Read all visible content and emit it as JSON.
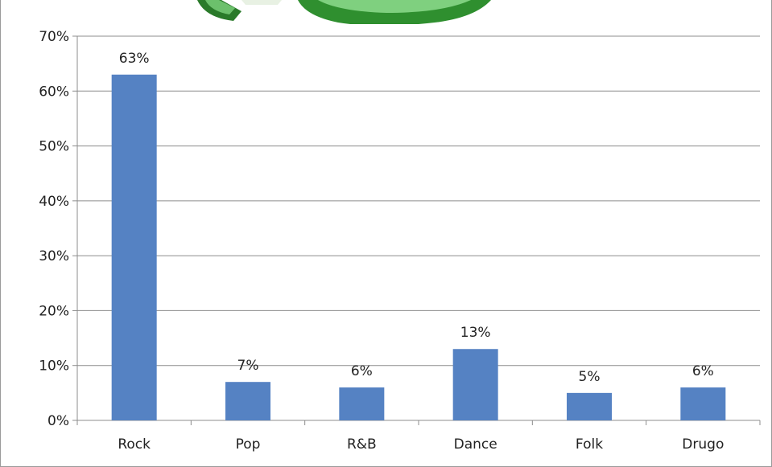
{
  "chart_data": {
    "type": "bar",
    "categories": [
      "Rock",
      "Pop",
      "R&B",
      "Dance",
      "Folk",
      "Drugo"
    ],
    "values": [
      63,
      7,
      6,
      13,
      5,
      6
    ],
    "data_labels": [
      "63%",
      "7%",
      "6%",
      "13%",
      "5%",
      "6%"
    ],
    "ylim": [
      0,
      70
    ],
    "yticks": [
      0,
      10,
      20,
      30,
      40,
      50,
      60,
      70
    ],
    "ytick_labels": [
      "0%",
      "10%",
      "20%",
      "30%",
      "40%",
      "50%",
      "60%",
      "70%"
    ],
    "grid": true,
    "legend": "none",
    "bar_color": "#5582c3",
    "title": "",
    "xlabel": "",
    "ylabel": ""
  },
  "decoration": {
    "icon": "green-leaf-graphic",
    "color": "#2e8b2e"
  }
}
